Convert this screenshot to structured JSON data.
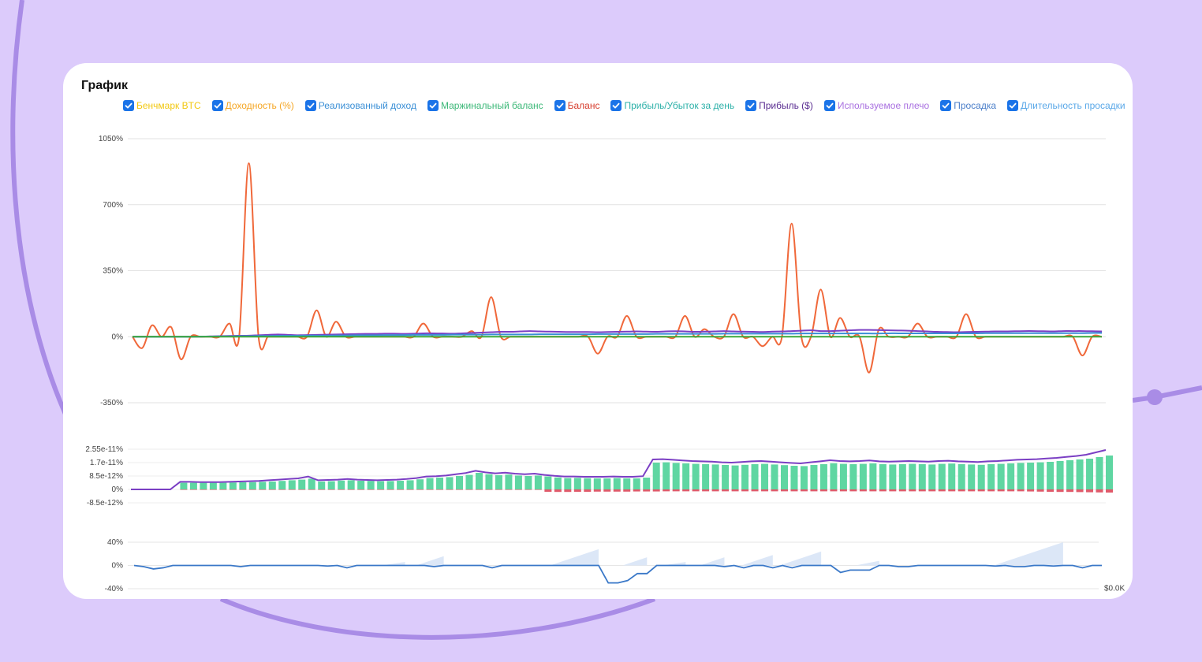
{
  "title": "График",
  "legend": [
    {
      "label": "Бенчмарк BTC",
      "color": "#f2c811",
      "checked": true
    },
    {
      "label": "Доходность (%)",
      "color": "#f5a623",
      "checked": true
    },
    {
      "label": "Реализованный доход",
      "color": "#3a8fd6",
      "checked": true
    },
    {
      "label": "Маржинальный баланс",
      "color": "#3cb878",
      "checked": true
    },
    {
      "label": "Баланс",
      "color": "#d63b2b",
      "checked": true
    },
    {
      "label": "Прибыль/Убыток за день",
      "color": "#2bb0a8",
      "checked": true
    },
    {
      "label": "Прибыль ($)",
      "color": "#5a2d91",
      "checked": true
    },
    {
      "label": "Используемое плечо",
      "color": "#a970e0",
      "checked": true
    },
    {
      "label": "Просадка",
      "color": "#4a7ec9",
      "checked": true
    },
    {
      "label": "Длительность просадки",
      "color": "#5aa8e8",
      "checked": true
    }
  ],
  "right_axis_label": "$0.0K",
  "colors": {
    "accent": "#1a73e8",
    "balance_line": "#f0683a",
    "purple_line": "#7b3fc4",
    "green_line": "#3aa83a",
    "pnl_positive": "#5fd6a2",
    "pnl_negative": "#e05a6a",
    "drawdown_line": "#3a78c8",
    "drawdown_area": "#dce7f7"
  },
  "chart_data": [
    {
      "type": "line",
      "title": "",
      "yticks": [
        "1050%",
        "700%",
        "350%",
        "0%",
        "-350%"
      ],
      "ylim": [
        -350,
        1050
      ],
      "x": [
        0,
        0.01,
        0.02,
        0.03,
        0.04,
        0.05,
        0.06,
        0.07,
        0.08,
        0.09,
        0.1,
        0.11,
        0.12,
        0.13,
        0.14,
        0.15,
        0.16,
        0.17,
        0.18,
        0.19,
        0.2,
        0.21,
        0.22,
        0.23,
        0.24,
        0.25,
        0.26,
        0.27,
        0.28,
        0.29,
        0.3,
        0.31,
        0.32,
        0.33,
        0.34,
        0.35,
        0.36,
        0.37,
        0.38,
        0.39,
        0.4,
        0.41,
        0.42,
        0.43,
        0.44,
        0.45,
        0.46,
        0.47,
        0.48,
        0.49,
        0.5,
        0.51,
        0.52,
        0.53,
        0.54,
        0.55,
        0.56,
        0.57,
        0.58,
        0.59,
        0.6,
        0.61,
        0.62,
        0.63,
        0.64,
        0.65,
        0.66,
        0.67,
        0.68,
        0.69,
        0.7,
        0.71,
        0.72,
        0.73,
        0.74,
        0.75,
        0.76,
        0.77,
        0.78,
        0.79,
        0.8,
        0.81,
        0.82,
        0.83,
        0.84,
        0.85,
        0.86,
        0.87,
        0.88,
        0.89,
        0.9,
        0.91,
        0.92,
        0.93,
        0.94,
        0.95,
        0.96,
        0.97,
        0.98,
        0.99,
        1
      ],
      "series": [
        {
          "color": "#f0683a",
          "values": [
            0,
            -60,
            60,
            0,
            50,
            -120,
            0,
            0,
            0,
            0,
            70,
            0,
            920,
            0,
            0,
            0,
            0,
            0,
            0,
            140,
            0,
            80,
            0,
            0,
            0,
            0,
            0,
            0,
            0,
            0,
            70,
            0,
            0,
            0,
            0,
            30,
            0,
            210,
            0,
            0,
            0,
            0,
            0,
            0,
            0,
            0,
            0,
            0,
            -90,
            0,
            0,
            110,
            0,
            0,
            0,
            0,
            0,
            110,
            0,
            40,
            0,
            0,
            120,
            0,
            0,
            -50,
            0,
            0,
            600,
            0,
            0,
            250,
            0,
            100,
            0,
            0,
            -190,
            40,
            0,
            0,
            0,
            70,
            0,
            0,
            0,
            0,
            120,
            0,
            0,
            0,
            0,
            0,
            0,
            0,
            0,
            0,
            0,
            0,
            -100,
            0,
            0
          ]
        },
        {
          "color": "#7b3fc4",
          "values": [
            0,
            0,
            0,
            0,
            0,
            0,
            0,
            0,
            2,
            3,
            4,
            5,
            6,
            8,
            10,
            12,
            10,
            8,
            9,
            10,
            11,
            12,
            13,
            14,
            15,
            15,
            16,
            16,
            15,
            16,
            18,
            18,
            17,
            16,
            18,
            20,
            22,
            24,
            26,
            26,
            28,
            30,
            28,
            27,
            26,
            25,
            25,
            25,
            24,
            25,
            26,
            27,
            28,
            27,
            26,
            28,
            29,
            28,
            26,
            27,
            28,
            30,
            28,
            27,
            26,
            25,
            27,
            28,
            30,
            32,
            34,
            30,
            30,
            32,
            34,
            36,
            36,
            35,
            34,
            33,
            32,
            30,
            28,
            26,
            25,
            24,
            25,
            26,
            27,
            28,
            28,
            29,
            30,
            30,
            29,
            28,
            30,
            30,
            30,
            29,
            28
          ]
        },
        {
          "color": "#3a8fd6",
          "values": [
            0,
            0,
            0,
            0,
            0,
            0,
            0,
            1,
            1,
            2,
            2,
            3,
            3,
            4,
            4,
            5,
            5,
            5,
            6,
            6,
            6,
            7,
            7,
            8,
            8,
            8,
            9,
            9,
            9,
            10,
            10,
            10,
            10,
            11,
            11,
            11,
            11,
            12,
            12,
            12,
            12,
            12,
            13,
            13,
            13,
            13,
            13,
            13,
            14,
            14,
            14,
            14,
            14,
            14,
            15,
            15,
            15,
            15,
            15,
            15,
            15,
            16,
            16,
            16,
            16,
            16,
            16,
            16,
            16,
            17,
            17,
            17,
            17,
            17,
            17,
            17,
            17,
            17,
            18,
            18,
            18,
            18,
            18,
            18,
            18,
            18,
            18,
            18,
            19,
            19,
            19,
            19,
            19,
            19,
            19,
            19,
            19,
            19,
            19,
            20,
            20
          ]
        },
        {
          "color": "#3aa83a",
          "values": [
            0,
            0,
            0,
            0,
            0,
            0,
            0,
            0,
            0,
            0,
            0,
            0,
            0,
            0,
            0,
            0,
            0,
            0,
            0,
            0,
            0,
            0,
            0,
            0,
            0,
            0,
            0,
            0,
            0,
            0,
            0,
            0,
            0,
            0,
            0,
            0,
            0,
            0,
            0,
            0,
            0,
            0,
            0,
            0,
            0,
            0,
            0,
            0,
            0,
            0,
            0,
            0,
            0,
            0,
            0,
            0,
            0,
            0,
            0,
            0,
            0,
            0,
            0,
            0,
            0,
            0,
            0,
            0,
            0,
            0,
            0,
            0,
            0,
            0,
            0,
            0,
            0,
            0,
            0,
            0,
            0,
            0,
            0,
            0,
            0,
            0,
            0,
            0,
            0,
            0,
            0,
            0,
            0,
            0,
            0,
            0,
            0,
            0,
            0,
            0,
            0
          ]
        }
      ]
    },
    {
      "type": "bar",
      "title": "",
      "yticks": [
        "2.55e-11%",
        "1.7e-11%",
        "8.5e-12%",
        "0%",
        "-8.5e-12%"
      ],
      "ylim": [
        -8.5e-12,
        2.55e-11
      ],
      "positive_values": [
        0,
        0,
        0,
        0,
        0,
        4.2e-12,
        4.2e-12,
        4.2e-12,
        4.2e-12,
        4.2e-12,
        4.4e-12,
        4.5e-12,
        4.6e-12,
        4.8e-12,
        5e-12,
        5.4e-12,
        5.8e-12,
        6.2e-12,
        6.8e-12,
        5e-12,
        5.2e-12,
        5.6e-12,
        5.8e-12,
        5.5e-12,
        5.4e-12,
        5.2e-12,
        5.3e-12,
        5.5e-12,
        5.8e-12,
        6.4e-12,
        7.2e-12,
        7.5e-12,
        7.8e-12,
        8.5e-12,
        9.2e-12,
        1.05e-11,
        9.6e-12,
        9e-12,
        9.4e-12,
        8.8e-12,
        8.5e-12,
        8.8e-12,
        8.2e-12,
        7.6e-12,
        7.2e-12,
        7.3e-12,
        7.1e-12,
        7e-12,
        7e-12,
        7.2e-12,
        7e-12,
        7e-12,
        7.5e-12,
        1.7e-11,
        1.72e-11,
        1.68e-11,
        1.65e-11,
        1.62e-11,
        1.6e-11,
        1.58e-11,
        1.55e-11,
        1.52e-11,
        1.56e-11,
        1.6e-11,
        1.62e-11,
        1.58e-11,
        1.54e-11,
        1.5e-11,
        1.48e-11,
        1.55e-11,
        1.6e-11,
        1.66e-11,
        1.62e-11,
        1.6e-11,
        1.62e-11,
        1.65e-11,
        1.6e-11,
        1.58e-11,
        1.6e-11,
        1.62e-11,
        1.6e-11,
        1.58e-11,
        1.62e-11,
        1.64e-11,
        1.6e-11,
        1.58e-11,
        1.56e-11,
        1.6e-11,
        1.62e-11,
        1.65e-11,
        1.68e-11,
        1.7e-11,
        1.72e-11,
        1.75e-11,
        1.8e-11,
        1.85e-11,
        1.9e-11,
        1.95e-11,
        2.05e-11,
        2.15e-11
      ],
      "negative_values": [
        0,
        0,
        0,
        0,
        0,
        -3e-13,
        -3e-13,
        -3e-13,
        -3e-13,
        -3e-13,
        -3e-13,
        -3e-13,
        -3e-13,
        -3e-13,
        -3e-13,
        -3e-13,
        -3e-13,
        -3e-13,
        -3e-13,
        -3e-13,
        -3e-13,
        -3e-13,
        -3e-13,
        -3e-13,
        -3e-13,
        -3e-13,
        -3e-13,
        -3e-13,
        -3e-13,
        -3e-13,
        -3e-13,
        -3e-13,
        -3e-13,
        -3e-13,
        -3e-13,
        -3e-13,
        -3e-13,
        -3e-13,
        -3e-13,
        -3e-13,
        -3e-13,
        -3e-13,
        -1.5e-12,
        -1.6e-12,
        -1.6e-12,
        -1.5e-12,
        -1.5e-12,
        -1.4e-12,
        -1.4e-12,
        -1.4e-12,
        -1.4e-12,
        -1.3e-12,
        -1.3e-12,
        -1.3e-12,
        -1.2e-12,
        -1.2e-12,
        -1.2e-12,
        -1.2e-12,
        -1.2e-12,
        -1.2e-12,
        -1.2e-12,
        -1.2e-12,
        -1.2e-12,
        -1.2e-12,
        -1.2e-12,
        -1.2e-12,
        -1.2e-12,
        -1.2e-12,
        -1.2e-12,
        -1.2e-12,
        -1.2e-12,
        -1.2e-12,
        -1.2e-12,
        -1.2e-12,
        -1.2e-12,
        -1.2e-12,
        -1.2e-12,
        -1.2e-12,
        -1.2e-12,
        -1.2e-12,
        -1.2e-12,
        -1.2e-12,
        -1.2e-12,
        -1.2e-12,
        -1.2e-12,
        -1.2e-12,
        -1.2e-12,
        -1.2e-12,
        -1.2e-12,
        -1.2e-12,
        -1.2e-12,
        -1.3e-12,
        -1.4e-12,
        -1.5e-12,
        -1.6e-12,
        -1.6e-12,
        -1.7e-12,
        -1.8e-12,
        -1.9e-12,
        -2e-12
      ],
      "line_values": [
        0,
        0,
        0,
        0,
        0,
        4.8e-12,
        4.8e-12,
        4.6e-12,
        4.6e-12,
        4.6e-12,
        4.8e-12,
        5e-12,
        5.2e-12,
        5.4e-12,
        5.8e-12,
        6.2e-12,
        6.6e-12,
        7e-12,
        8.2e-12,
        5.8e-12,
        6e-12,
        6.2e-12,
        6.6e-12,
        6.2e-12,
        6e-12,
        5.8e-12,
        6e-12,
        6.2e-12,
        6.6e-12,
        7.2e-12,
        8.2e-12,
        8.4e-12,
        8.8e-12,
        9.6e-12,
        1.04e-11,
        1.18e-11,
        1.08e-11,
        1.02e-11,
        1.06e-11,
        1e-11,
        9.6e-12,
        1e-11,
        9.2e-12,
        8.6e-12,
        8.2e-12,
        8.2e-12,
        8e-12,
        8e-12,
        8e-12,
        8.2e-12,
        8e-12,
        8e-12,
        8.4e-12,
        1.9e-11,
        1.92e-11,
        1.88e-11,
        1.84e-11,
        1.8e-11,
        1.78e-11,
        1.76e-11,
        1.72e-11,
        1.7e-11,
        1.74e-11,
        1.78e-11,
        1.8e-11,
        1.76e-11,
        1.72e-11,
        1.68e-11,
        1.65e-11,
        1.72e-11,
        1.78e-11,
        1.85e-11,
        1.8e-11,
        1.78e-11,
        1.8e-11,
        1.84e-11,
        1.78e-11,
        1.76e-11,
        1.78e-11,
        1.8e-11,
        1.78e-11,
        1.76e-11,
        1.8e-11,
        1.82e-11,
        1.78e-11,
        1.76e-11,
        1.74e-11,
        1.78e-11,
        1.8e-11,
        1.84e-11,
        1.88e-11,
        1.9e-11,
        1.92e-11,
        1.96e-11,
        2e-11,
        2.06e-11,
        2.12e-11,
        2.2e-11,
        2.35e-11,
        2.5e-11
      ]
    },
    {
      "type": "area",
      "title": "",
      "yticks": [
        "40%",
        "0%",
        "-40%"
      ],
      "ylim": [
        -40,
        40
      ],
      "right_tick": "$0.0K",
      "drawdown": [
        0,
        -2,
        -6,
        -4,
        0,
        0,
        0,
        0,
        0,
        0,
        0,
        -2,
        0,
        0,
        0,
        0,
        0,
        0,
        0,
        0,
        -1,
        0,
        -4,
        0,
        0,
        0,
        0,
        0,
        0,
        0,
        0,
        -2,
        0,
        0,
        0,
        0,
        0,
        -4,
        0,
        0,
        0,
        0,
        0,
        0,
        0,
        0,
        0,
        0,
        0,
        -30,
        -30,
        -26,
        -14,
        -14,
        0,
        0,
        0,
        0,
        0,
        0,
        0,
        -2,
        0,
        -4,
        0,
        0,
        -4,
        0,
        -4,
        0,
        0,
        0,
        0,
        -12,
        -8,
        -8,
        -8,
        0,
        0,
        -2,
        -2,
        0,
        0,
        0,
        0,
        0,
        0,
        0,
        0,
        -1,
        0,
        -2,
        -2,
        0,
        0,
        -1,
        0,
        0,
        -4,
        0,
        0
      ],
      "duration": [
        0,
        0,
        0,
        0,
        0,
        0,
        0,
        0,
        0,
        0,
        0,
        0,
        0,
        0,
        0,
        0,
        0,
        0,
        0,
        0,
        0,
        0,
        0,
        0,
        0,
        0,
        0,
        0,
        6,
        0,
        0,
        0,
        16,
        0,
        0,
        0,
        0,
        0,
        0,
        0,
        0,
        0,
        0,
        0,
        0,
        0,
        0,
        0,
        28,
        0,
        0,
        0,
        0,
        14,
        0,
        0,
        0,
        6,
        0,
        0,
        0,
        14,
        0,
        0,
        0,
        0,
        18,
        0,
        0,
        0,
        0,
        24,
        0,
        0,
        0,
        0,
        0,
        8,
        0,
        0,
        0,
        0,
        0,
        0,
        0,
        0,
        0,
        0,
        0,
        0,
        0,
        0,
        0,
        0,
        0,
        0,
        40,
        0,
        0,
        0,
        0
      ]
    }
  ]
}
